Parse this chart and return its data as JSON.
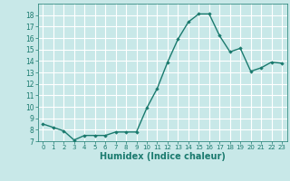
{
  "x": [
    0,
    1,
    2,
    3,
    4,
    5,
    6,
    7,
    8,
    9,
    10,
    11,
    12,
    13,
    14,
    15,
    16,
    17,
    18,
    19,
    20,
    21,
    22,
    23
  ],
  "y": [
    8.5,
    8.2,
    7.9,
    7.1,
    7.5,
    7.5,
    7.5,
    7.8,
    7.8,
    7.8,
    9.9,
    11.6,
    13.9,
    15.9,
    17.4,
    18.1,
    18.1,
    16.2,
    14.8,
    15.1,
    13.1,
    13.4,
    13.9,
    13.8
  ],
  "line_color": "#1a7a6e",
  "marker": "D",
  "marker_size": 1.8,
  "linewidth": 1.0,
  "xlabel": "Humidex (Indice chaleur)",
  "xlabel_fontsize": 7,
  "xlabel_color": "#1a7a6e",
  "bg_color": "#c8e8e8",
  "grid_color": "#ffffff",
  "tick_color": "#1a7a6e",
  "ylim": [
    7,
    19
  ],
  "yticks": [
    7,
    8,
    9,
    10,
    11,
    12,
    13,
    14,
    15,
    16,
    17,
    18
  ],
  "xlim": [
    -0.5,
    23.5
  ],
  "xticks": [
    0,
    1,
    2,
    3,
    4,
    5,
    6,
    7,
    8,
    9,
    10,
    11,
    12,
    13,
    14,
    15,
    16,
    17,
    18,
    19,
    20,
    21,
    22,
    23
  ],
  "tick_fontsize": 5.5,
  "xtick_fontsize": 5.0
}
